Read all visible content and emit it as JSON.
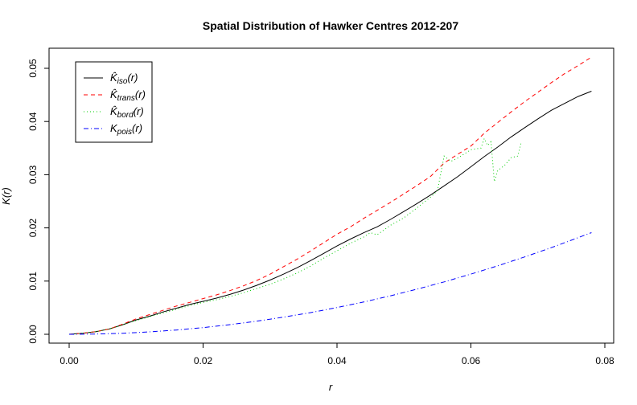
{
  "chart_data": {
    "type": "line",
    "title": "Spatial Distribution of Hawker Centres 2012-207",
    "xlabel": "r",
    "ylabel": "K(r)",
    "xlim": [
      0,
      0.08
    ],
    "ylim": [
      0,
      0.052
    ],
    "x_ticks": [
      "0.00",
      "0.02",
      "0.04",
      "0.06",
      "0.08"
    ],
    "y_ticks": [
      "0.00",
      "0.01",
      "0.02",
      "0.03",
      "0.04",
      "0.05"
    ],
    "grid": false,
    "legend_position": "top-left",
    "series": [
      {
        "name": "K̂iso(r)",
        "legend_main": "K̂",
        "legend_sub": "iso",
        "legend_tail": "(r)",
        "color": "#000000",
        "dash": "",
        "points": [
          [
            0.0,
            0.0
          ],
          [
            0.002,
            0.0002
          ],
          [
            0.004,
            0.0005
          ],
          [
            0.006,
            0.001
          ],
          [
            0.008,
            0.0018
          ],
          [
            0.01,
            0.0027
          ],
          [
            0.012,
            0.0034
          ],
          [
            0.014,
            0.0042
          ],
          [
            0.016,
            0.0049
          ],
          [
            0.018,
            0.0056
          ],
          [
            0.02,
            0.0062
          ],
          [
            0.022,
            0.0068
          ],
          [
            0.024,
            0.0075
          ],
          [
            0.026,
            0.0083
          ],
          [
            0.028,
            0.0092
          ],
          [
            0.03,
            0.0102
          ],
          [
            0.032,
            0.0113
          ],
          [
            0.034,
            0.0125
          ],
          [
            0.036,
            0.0138
          ],
          [
            0.038,
            0.0152
          ],
          [
            0.04,
            0.0166
          ],
          [
            0.042,
            0.0179
          ],
          [
            0.044,
            0.0191
          ],
          [
            0.046,
            0.0202
          ],
          [
            0.048,
            0.0216
          ],
          [
            0.05,
            0.0231
          ],
          [
            0.052,
            0.0246
          ],
          [
            0.054,
            0.0262
          ],
          [
            0.056,
            0.0279
          ],
          [
            0.058,
            0.0296
          ],
          [
            0.06,
            0.0315
          ],
          [
            0.062,
            0.0334
          ],
          [
            0.064,
            0.0352
          ],
          [
            0.066,
            0.0371
          ],
          [
            0.068,
            0.0388
          ],
          [
            0.07,
            0.0405
          ],
          [
            0.072,
            0.0421
          ],
          [
            0.074,
            0.0434
          ],
          [
            0.076,
            0.0447
          ],
          [
            0.078,
            0.0457
          ]
        ]
      },
      {
        "name": "K̂trans(r)",
        "legend_main": "K̂",
        "legend_sub": "trans",
        "legend_tail": "(r)",
        "color": "#ff0000",
        "dash": "5,4",
        "points": [
          [
            0.0,
            0.0
          ],
          [
            0.002,
            0.0002
          ],
          [
            0.004,
            0.0005
          ],
          [
            0.006,
            0.001
          ],
          [
            0.008,
            0.0019
          ],
          [
            0.01,
            0.0029
          ],
          [
            0.012,
            0.0037
          ],
          [
            0.014,
            0.0045
          ],
          [
            0.016,
            0.0053
          ],
          [
            0.018,
            0.006
          ],
          [
            0.02,
            0.0067
          ],
          [
            0.022,
            0.0074
          ],
          [
            0.024,
            0.0082
          ],
          [
            0.026,
            0.0091
          ],
          [
            0.028,
            0.0101
          ],
          [
            0.03,
            0.0113
          ],
          [
            0.032,
            0.0127
          ],
          [
            0.034,
            0.0141
          ],
          [
            0.036,
            0.0156
          ],
          [
            0.038,
            0.0172
          ],
          [
            0.04,
            0.0188
          ],
          [
            0.042,
            0.0202
          ],
          [
            0.044,
            0.0218
          ],
          [
            0.046,
            0.0233
          ],
          [
            0.048,
            0.0248
          ],
          [
            0.05,
            0.0264
          ],
          [
            0.052,
            0.028
          ],
          [
            0.054,
            0.0297
          ],
          [
            0.056,
            0.0322
          ],
          [
            0.058,
            0.0338
          ],
          [
            0.06,
            0.0354
          ],
          [
            0.062,
            0.0378
          ],
          [
            0.064,
            0.0398
          ],
          [
            0.066,
            0.0418
          ],
          [
            0.068,
            0.0437
          ],
          [
            0.07,
            0.0455
          ],
          [
            0.072,
            0.0473
          ],
          [
            0.074,
            0.049
          ],
          [
            0.076,
            0.0505
          ],
          [
            0.078,
            0.0521
          ]
        ]
      },
      {
        "name": "K̂bord(r)",
        "legend_main": "K̂",
        "legend_sub": "bord",
        "legend_tail": "(r)",
        "color": "#00cc00",
        "dash": "1,3",
        "points": [
          [
            0.0,
            0.0
          ],
          [
            0.002,
            0.0002
          ],
          [
            0.004,
            0.0005
          ],
          [
            0.006,
            0.001
          ],
          [
            0.008,
            0.0018
          ],
          [
            0.01,
            0.0026
          ],
          [
            0.012,
            0.0033
          ],
          [
            0.014,
            0.004
          ],
          [
            0.016,
            0.0047
          ],
          [
            0.018,
            0.0054
          ],
          [
            0.02,
            0.006
          ],
          [
            0.022,
            0.0065
          ],
          [
            0.024,
            0.0071
          ],
          [
            0.026,
            0.0078
          ],
          [
            0.028,
            0.0086
          ],
          [
            0.03,
            0.0094
          ],
          [
            0.032,
            0.0104
          ],
          [
            0.034,
            0.0115
          ],
          [
            0.036,
            0.0128
          ],
          [
            0.038,
            0.0143
          ],
          [
            0.04,
            0.0157
          ],
          [
            0.042,
            0.0171
          ],
          [
            0.044,
            0.0183
          ],
          [
            0.045,
            0.0191
          ],
          [
            0.046,
            0.0187
          ],
          [
            0.048,
            0.0205
          ],
          [
            0.05,
            0.0219
          ],
          [
            0.052,
            0.0238
          ],
          [
            0.054,
            0.0258
          ],
          [
            0.055,
            0.027
          ],
          [
            0.056,
            0.0335
          ],
          [
            0.057,
            0.0325
          ],
          [
            0.058,
            0.0331
          ],
          [
            0.06,
            0.0347
          ],
          [
            0.0615,
            0.035
          ],
          [
            0.062,
            0.0368
          ],
          [
            0.0625,
            0.0355
          ],
          [
            0.063,
            0.0362
          ],
          [
            0.0635,
            0.0287
          ],
          [
            0.064,
            0.0308
          ],
          [
            0.065,
            0.0317
          ],
          [
            0.066,
            0.0332
          ],
          [
            0.067,
            0.0335
          ],
          [
            0.0675,
            0.036
          ]
        ]
      },
      {
        "name": "Kpois(r)",
        "legend_main": "K",
        "legend_sub": "pois",
        "legend_tail": "(r)",
        "color": "#0000ff",
        "dash": "6,3,1,3",
        "points": [
          [
            0.0,
            0.0
          ],
          [
            0.004,
            5e-05
          ],
          [
            0.008,
            0.0002
          ],
          [
            0.012,
            0.00045
          ],
          [
            0.016,
            0.0008
          ],
          [
            0.02,
            0.00126
          ],
          [
            0.024,
            0.00181
          ],
          [
            0.028,
            0.00246
          ],
          [
            0.032,
            0.00322
          ],
          [
            0.036,
            0.00407
          ],
          [
            0.04,
            0.00503
          ],
          [
            0.044,
            0.00608
          ],
          [
            0.048,
            0.00724
          ],
          [
            0.052,
            0.0085
          ],
          [
            0.056,
            0.00985
          ],
          [
            0.06,
            0.01131
          ],
          [
            0.064,
            0.01287
          ],
          [
            0.068,
            0.01453
          ],
          [
            0.072,
            0.01629
          ],
          [
            0.076,
            0.01815
          ],
          [
            0.078,
            0.01911
          ]
        ]
      }
    ]
  }
}
